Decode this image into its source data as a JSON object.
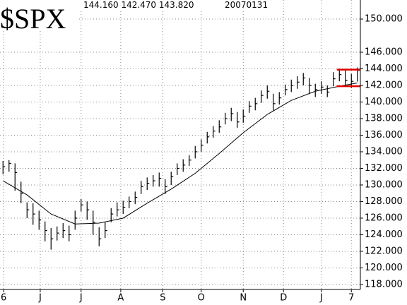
{
  "chart_data": {
    "type": "ohlc",
    "title": "$SPX",
    "last_bar_label": "144.160 142.470 143.820",
    "date": "20070131",
    "x": [
      0,
      1,
      2,
      3,
      4,
      5,
      6,
      7,
      8,
      9,
      10,
      11,
      12,
      13,
      14,
      15,
      16,
      17,
      18,
      19,
      20,
      21,
      22,
      23,
      24,
      25,
      26,
      27,
      28,
      29,
      30,
      31,
      32,
      33,
      34,
      35,
      36,
      37,
      38,
      39,
      40,
      41,
      42,
      43,
      44,
      45,
      46,
      47,
      48,
      49,
      50,
      51,
      52,
      53,
      54,
      55,
      56,
      57,
      58,
      59
    ],
    "high": [
      132.9,
      133.0,
      132.6,
      130.4,
      127.9,
      127.8,
      126.9,
      125.6,
      124.8,
      125.0,
      125.4,
      125.1,
      126.9,
      128.3,
      128.0,
      126.9,
      124.9,
      125.5,
      127.2,
      127.9,
      128.1,
      128.6,
      129.2,
      130.5,
      130.9,
      131.2,
      131.5,
      130.7,
      131.6,
      132.6,
      133.1,
      133.6,
      134.7,
      135.5,
      136.4,
      137.1,
      137.8,
      138.7,
      139.3,
      138.8,
      139.1,
      140.1,
      140.5,
      141.4,
      142.0,
      141.0,
      141.2,
      142.1,
      142.7,
      143.1,
      143.5,
      142.9,
      142.2,
      142.5,
      142.0,
      143.6,
      143.9,
      143.8,
      143.4,
      144.16
    ],
    "low": [
      131.3,
      131.6,
      129.3,
      127.8,
      126.0,
      125.2,
      124.6,
      123.2,
      122.2,
      123.3,
      123.6,
      123.2,
      124.6,
      126.8,
      125.8,
      124.0,
      122.6,
      123.6,
      125.5,
      126.2,
      126.5,
      127.2,
      127.7,
      128.9,
      129.4,
      129.8,
      129.8,
      128.9,
      130.0,
      131.2,
      131.6,
      132.3,
      133.2,
      134.0,
      135.0,
      135.7,
      136.3,
      137.3,
      137.7,
      136.9,
      137.5,
      138.7,
      139.0,
      139.9,
      140.4,
      139.0,
      139.7,
      140.8,
      141.2,
      141.6,
      142.0,
      141.0,
      140.6,
      141.0,
      140.6,
      141.9,
      142.5,
      141.9,
      141.7,
      142.47
    ],
    "close": [
      132.2,
      132.6,
      131.5,
      129.0,
      127.0,
      126.5,
      125.8,
      124.5,
      123.5,
      124.2,
      124.5,
      124.0,
      126.0,
      127.6,
      127.0,
      125.5,
      123.5,
      124.5,
      126.5,
      127.0,
      127.3,
      128.0,
      128.5,
      129.8,
      130.2,
      130.5,
      130.8,
      129.8,
      131.0,
      132.0,
      132.4,
      133.0,
      134.0,
      134.8,
      135.8,
      136.5,
      137.0,
      138.0,
      138.6,
      137.6,
      138.3,
      139.5,
      139.8,
      140.8,
      141.3,
      139.8,
      140.5,
      141.5,
      142.0,
      142.4,
      142.9,
      142.0,
      141.5,
      141.8,
      141.2,
      142.8,
      143.3,
      142.6,
      142.5,
      143.82
    ],
    "bar_color": "#000000",
    "moving_average": {
      "x": [
        0,
        4,
        8,
        12,
        16,
        20,
        24,
        28,
        32,
        36,
        40,
        44,
        48,
        52,
        56,
        59
      ],
      "values": [
        130.5,
        128.8,
        126.5,
        125.3,
        125.4,
        126.0,
        127.8,
        129.5,
        131.4,
        133.8,
        136.3,
        138.5,
        140.2,
        141.3,
        141.9,
        142.3
      ],
      "color": "#000000"
    },
    "levels": [
      {
        "value": 143.9,
        "x": [
          55.6,
          59.5
        ],
        "color": "#e00000"
      },
      {
        "value": 141.9,
        "x": [
          55.6,
          59.5
        ],
        "color": "#e00000"
      }
    ],
    "xlim": [
      -0.5,
      59.5
    ],
    "xticks": [
      {
        "value": 0.1,
        "label": "6"
      },
      {
        "value": 6.2,
        "label": "J"
      },
      {
        "value": 13.0,
        "label": "J"
      },
      {
        "value": 19.6,
        "label": "A"
      },
      {
        "value": 26.6,
        "label": "S"
      },
      {
        "value": 33.0,
        "label": "O"
      },
      {
        "value": 40.0,
        "label": "N"
      },
      {
        "value": 46.7,
        "label": "D"
      },
      {
        "value": 53.0,
        "label": "J"
      },
      {
        "value": 58.0,
        "label": "7"
      }
    ],
    "ylim": [
      117.4,
      152.3
    ],
    "yticks": [
      {
        "value": 118,
        "label": "118.000"
      },
      {
        "value": 120,
        "label": "120.000"
      },
      {
        "value": 122,
        "label": "122.000"
      },
      {
        "value": 124,
        "label": "124.000"
      },
      {
        "value": 126,
        "label": "126.000"
      },
      {
        "value": 128,
        "label": "128.000"
      },
      {
        "value": 130,
        "label": "130.000"
      },
      {
        "value": 132,
        "label": "132.000"
      },
      {
        "value": 134,
        "label": "134.000"
      },
      {
        "value": 136,
        "label": "136.000"
      },
      {
        "value": 138,
        "label": "138.000"
      },
      {
        "value": 140,
        "label": "140.000"
      },
      {
        "value": 142,
        "label": "142.000"
      },
      {
        "value": 144,
        "label": "144.000"
      },
      {
        "value": 146,
        "label": "146.000"
      },
      {
        "value": 150,
        "label": "150.000"
      }
    ],
    "grid": true
  }
}
